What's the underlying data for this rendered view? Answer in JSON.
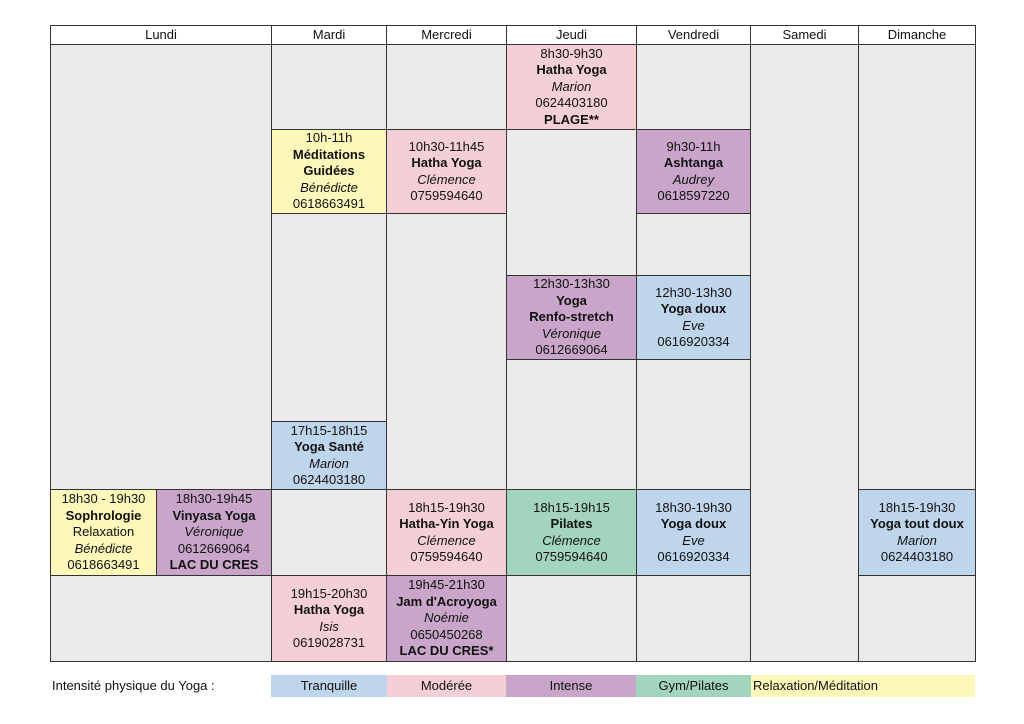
{
  "days": [
    "Lundi",
    "Mardi",
    "Mercredi",
    "Jeudi",
    "Vendredi",
    "Samedi",
    "Dimanche"
  ],
  "courses": [
    {
      "id": "jeu-1",
      "day": "Jeudi",
      "style": "moderee",
      "lines": [
        {
          "t": "8h30-9h30"
        },
        {
          "t": "Hatha Yoga",
          "f": "b"
        },
        {
          "t": "Marion",
          "f": "i"
        },
        {
          "t": "0624403180"
        },
        {
          "t": "PLAGE**",
          "f": "b"
        }
      ]
    },
    {
      "id": "mar-1",
      "day": "Mardi",
      "style": "relax",
      "lines": [
        {
          "t": "10h-11h"
        },
        {
          "t": "Méditations",
          "f": "b"
        },
        {
          "t": "Guidées",
          "f": "b"
        },
        {
          "t": "Bénédicte",
          "f": "i"
        },
        {
          "t": "0618663491"
        }
      ]
    },
    {
      "id": "mer-1",
      "day": "Mercredi",
      "style": "moderee",
      "lines": [
        {
          "t": "10h30-11h45"
        },
        {
          "t": "Hatha Yoga",
          "f": "b"
        },
        {
          "t": "Clémence",
          "f": "i"
        },
        {
          "t": "0759594640"
        }
      ]
    },
    {
      "id": "ven-1",
      "day": "Vendredi",
      "style": "intense",
      "lines": [
        {
          "t": "9h30-11h"
        },
        {
          "t": "Ashtanga",
          "f": "b"
        },
        {
          "t": "Audrey",
          "f": "i"
        },
        {
          "t": "0618597220"
        }
      ]
    },
    {
      "id": "jeu-2",
      "day": "Jeudi",
      "style": "intense",
      "lines": [
        {
          "t": "12h30-13h30"
        },
        {
          "t": "Yoga",
          "f": "b"
        },
        {
          "t": "Renfo-stretch",
          "f": "b"
        },
        {
          "t": "Véronique",
          "f": "i"
        },
        {
          "t": "0612669064"
        }
      ]
    },
    {
      "id": "ven-2",
      "day": "Vendredi",
      "style": "tranquille",
      "lines": [
        {
          "t": "12h30-13h30"
        },
        {
          "t": "Yoga doux",
          "f": "b"
        },
        {
          "t": "Eve",
          "f": "i"
        },
        {
          "t": "0616920334"
        }
      ]
    },
    {
      "id": "mar-2",
      "day": "Mardi",
      "style": "tranquille",
      "lines": [
        {
          "t": "17h15-18h15"
        },
        {
          "t": "Yoga Santé",
          "f": "b"
        },
        {
          "t": "Marion",
          "f": "i"
        },
        {
          "t": "0624403180"
        }
      ]
    },
    {
      "id": "lun-1",
      "day": "Lundi",
      "style": "relax",
      "lines": [
        {
          "t": "18h30 - 19h30"
        },
        {
          "t": "Sophrologie",
          "f": "b"
        },
        {
          "t": "Relaxation"
        },
        {
          "t": "Bénédicte",
          "f": "i"
        },
        {
          "t": "0618663491"
        }
      ]
    },
    {
      "id": "lun-2",
      "day": "Lundi",
      "style": "intense",
      "lines": [
        {
          "t": "18h30-19h45"
        },
        {
          "t": "Vinyasa Yoga",
          "f": "b"
        },
        {
          "t": "Véronique",
          "f": "i"
        },
        {
          "t": "0612669064"
        },
        {
          "t": "LAC DU CRES",
          "f": "b"
        }
      ]
    },
    {
      "id": "mer-2",
      "day": "Mercredi",
      "style": "moderee",
      "lines": [
        {
          "t": "18h15-19h30"
        },
        {
          "t": "Hatha-Yin Yoga",
          "f": "b"
        },
        {
          "t": "Clémence",
          "f": "i"
        },
        {
          "t": "0759594640"
        }
      ]
    },
    {
      "id": "jeu-3",
      "day": "Jeudi",
      "style": "gym",
      "lines": [
        {
          "t": "18h15-19h15"
        },
        {
          "t": "Pilates",
          "f": "b"
        },
        {
          "t": "Clémence",
          "f": "i"
        },
        {
          "t": "0759594640"
        }
      ]
    },
    {
      "id": "ven-3",
      "day": "Vendredi",
      "style": "tranquille",
      "lines": [
        {
          "t": "18h30-19h30"
        },
        {
          "t": "Yoga doux",
          "f": "b"
        },
        {
          "t": "Eve",
          "f": "i"
        },
        {
          "t": "0616920334"
        }
      ]
    },
    {
      "id": "dim-1",
      "day": "Dimanche",
      "style": "tranquille",
      "lines": [
        {
          "t": "18h15-19h30"
        },
        {
          "t": "Yoga tout doux",
          "f": "b"
        },
        {
          "t": "Marion",
          "f": "i"
        },
        {
          "t": "0624403180"
        }
      ]
    },
    {
      "id": "mar-3",
      "day": "Mardi",
      "style": "moderee",
      "lines": [
        {
          "t": "19h15-20h30"
        },
        {
          "t": "Hatha Yoga",
          "f": "b"
        },
        {
          "t": "Isis",
          "f": "i"
        },
        {
          "t": "0619028731"
        }
      ]
    },
    {
      "id": "mer-3",
      "day": "Mercredi",
      "style": "intense",
      "lines": [
        {
          "t": "19h45-21h30"
        },
        {
          "t": "Jam d'Acroyoga",
          "f": "b"
        },
        {
          "t": "Noémie",
          "f": "i"
        },
        {
          "t": "0650450268"
        },
        {
          "t": "LAC DU CRES*",
          "f": "b"
        }
      ]
    }
  ],
  "legend": {
    "label": "Intensité physique du Yoga :",
    "items": [
      {
        "id": "tranquille",
        "label": "Tranquille",
        "color": "#bed5eb"
      },
      {
        "id": "moderee",
        "label": "Modérée",
        "color": "#f4cfd5"
      },
      {
        "id": "intense",
        "label": "Intense",
        "color": "#c9a5c9"
      },
      {
        "id": "gym",
        "label": "Gym/Pilates",
        "color": "#a2d4be"
      },
      {
        "id": "relax",
        "label": "Relaxation/Méditation",
        "color": "#fdf7b9"
      }
    ]
  }
}
